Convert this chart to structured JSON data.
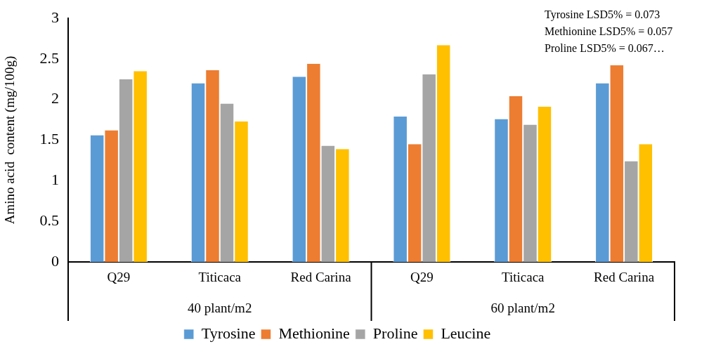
{
  "chart_data": {
    "type": "bar",
    "ylabel": "Amino acid  content (mg/100g)",
    "categories": [
      "Q29",
      "Titicaca",
      "Red Carina",
      "Q29",
      "Titicaca",
      "Red Carina"
    ],
    "series": [
      {
        "name": "Tyrosine",
        "color": "#5b9bd5",
        "values": [
          1.56,
          2.2,
          2.28,
          1.79,
          1.76,
          2.2
        ]
      },
      {
        "name": "Methionine",
        "color": "#ed7d31",
        "values": [
          1.62,
          2.36,
          2.44,
          1.45,
          2.04,
          2.42
        ]
      },
      {
        "name": "Proline",
        "color": "#a5a5a5",
        "values": [
          2.25,
          1.95,
          1.43,
          2.31,
          1.69,
          1.24
        ]
      },
      {
        "name": "Leucine",
        "color": "#ffc000",
        "values": [
          2.35,
          1.73,
          1.39,
          2.67,
          1.91,
          1.45
        ]
      }
    ],
    "ylim": [
      0,
      3
    ],
    "yticks": [
      0,
      0.5,
      1,
      1.5,
      2,
      2.5,
      3
    ],
    "grid": false,
    "legend": "bottom",
    "annotations": [
      "Tyrosine LSD5% = 0.073",
      "Methionine LSD5% = 0.057",
      "Proline LSD5% = 0.067…",
      "40 plant/m2",
      "60 plant/m2"
    ]
  }
}
